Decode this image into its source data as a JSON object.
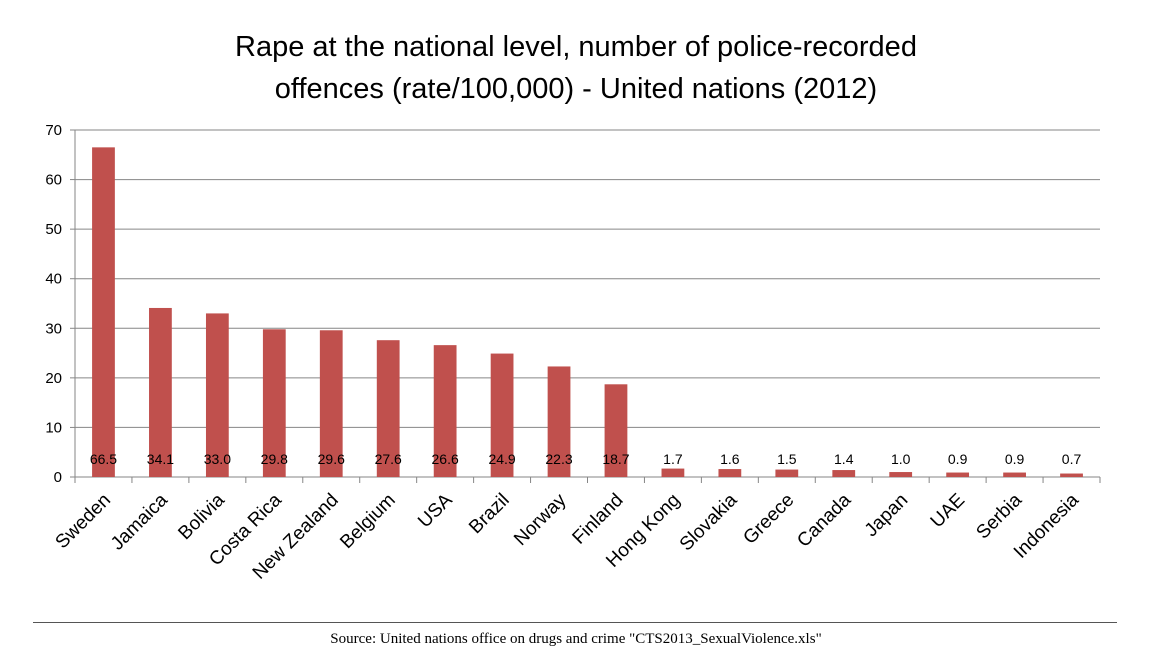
{
  "chart_data": {
    "type": "bar",
    "title_lines": [
      "Rape at the national level, number of police-recorded",
      "offences (rate/100,000) - United nations (2012)"
    ],
    "categories": [
      "Sweden",
      "Jamaica",
      "Bolivia",
      "Costa Rica",
      "New Zealand",
      "Belgium",
      "USA",
      "Brazil",
      "Norway",
      "Finland",
      "Hong Kong",
      "Slovakia",
      "Greece",
      "Canada",
      "Japan",
      "UAE",
      "Serbia",
      "Indonesia"
    ],
    "values": [
      66.5,
      34.1,
      33.0,
      29.8,
      29.6,
      27.6,
      26.6,
      24.9,
      22.3,
      18.7,
      1.7,
      1.6,
      1.5,
      1.4,
      1.0,
      0.9,
      0.9,
      0.7
    ],
    "value_labels": [
      "66.5",
      "34.1",
      "33.0",
      "29.8",
      "29.6",
      "27.6",
      "26.6",
      "24.9",
      "22.3",
      "18.7",
      "1.7",
      "1.6",
      "1.5",
      "1.4",
      "1.0",
      "0.9",
      "0.9",
      "0.7"
    ],
    "y_ticks": [
      0,
      10,
      20,
      30,
      40,
      50,
      60,
      70
    ],
    "ylim": [
      0,
      70
    ],
    "grid": true,
    "legend": "none",
    "bar_color": "#C0504D",
    "xlabel": "",
    "ylabel": ""
  },
  "source": "Source: United nations office on drugs and crime \"CTS2013_SexualViolence.xls\""
}
